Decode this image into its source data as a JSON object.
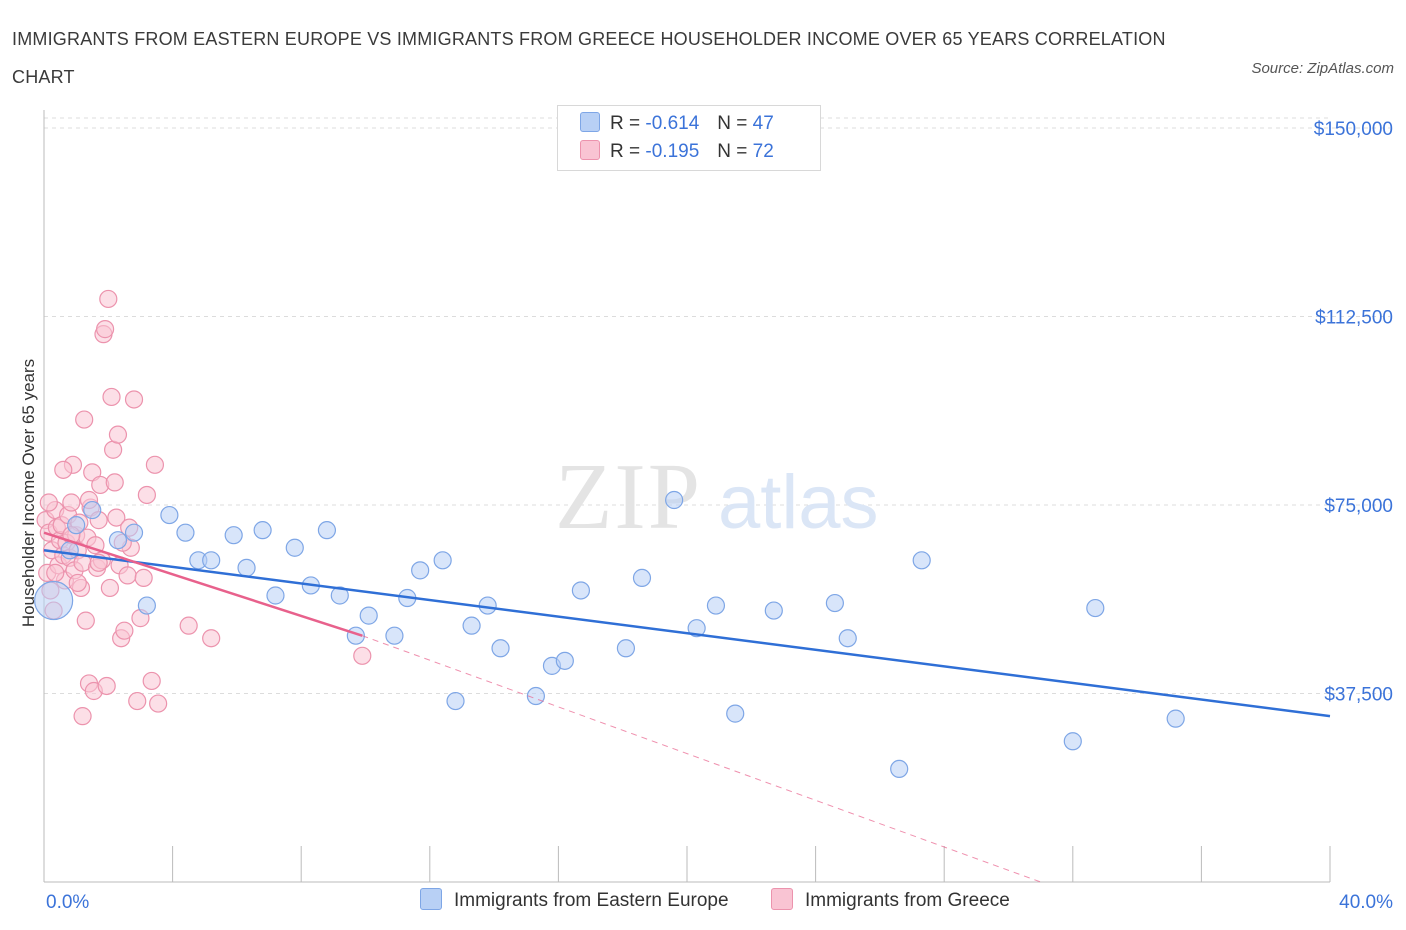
{
  "title": "IMMIGRANTS FROM EASTERN EUROPE VS IMMIGRANTS FROM GREECE HOUSEHOLDER INCOME OVER 65 YEARS CORRELATION CHART",
  "source": "Source: ZipAtlas.com",
  "watermark": {
    "zip": "ZIP",
    "atlas": "atlas"
  },
  "legend_top": [
    {
      "r_label": "R =",
      "r_value": "-0.614",
      "n_label": "N =",
      "n_value": "47",
      "color": "#b8d0f5"
    },
    {
      "r_label": "R =",
      "r_value": "-0.195",
      "n_label": "N =",
      "n_value": "72",
      "color": "#f9c4d3"
    }
  ],
  "colors": {
    "blue_fill": "#b8d0f5",
    "blue_stroke": "#7ea6e6",
    "blue_line": "#2f6fd6",
    "pink_fill": "#f9c4d3",
    "pink_stroke": "#ec93ad",
    "pink_line": "#e8618c",
    "tick_label": "#3b73d9",
    "grid": "#dcdcdc"
  },
  "chart_data": {
    "type": "scatter",
    "title": "IMMIGRANTS FROM EASTERN EUROPE VS IMMIGRANTS FROM GREECE HOUSEHOLDER INCOME OVER 65 YEARS CORRELATION CHART",
    "xlabel": "",
    "ylabel": "Householder Income Over 65 years",
    "xlim": [
      0,
      40
    ],
    "ylim": [
      0,
      152000
    ],
    "x_tick_labels": [
      "0.0%",
      "40.0%"
    ],
    "y_ticks": [
      37500,
      75000,
      112500,
      150000
    ],
    "y_tick_labels": [
      "$37,500",
      "$75,000",
      "$112,500",
      "$150,000"
    ],
    "grid": true,
    "legend_position": "top-center",
    "series": [
      {
        "name": "Immigrants from Eastern Europe",
        "points": [
          {
            "x": 0.3,
            "y": 56000,
            "big": true
          },
          {
            "x": 0.8,
            "y": 66000
          },
          {
            "x": 1.0,
            "y": 71000
          },
          {
            "x": 1.5,
            "y": 74000
          },
          {
            "x": 2.3,
            "y": 68000
          },
          {
            "x": 2.8,
            "y": 69500
          },
          {
            "x": 3.2,
            "y": 55000
          },
          {
            "x": 3.9,
            "y": 73000
          },
          {
            "x": 4.4,
            "y": 69500
          },
          {
            "x": 4.8,
            "y": 64000
          },
          {
            "x": 5.2,
            "y": 64000
          },
          {
            "x": 5.9,
            "y": 69000
          },
          {
            "x": 6.3,
            "y": 62500
          },
          {
            "x": 6.8,
            "y": 70000
          },
          {
            "x": 7.2,
            "y": 57000
          },
          {
            "x": 7.8,
            "y": 66500
          },
          {
            "x": 8.3,
            "y": 59000
          },
          {
            "x": 8.8,
            "y": 70000
          },
          {
            "x": 9.2,
            "y": 57000
          },
          {
            "x": 9.7,
            "y": 49000
          },
          {
            "x": 10.1,
            "y": 53000
          },
          {
            "x": 10.9,
            "y": 49000
          },
          {
            "x": 11.3,
            "y": 56500
          },
          {
            "x": 11.7,
            "y": 62000
          },
          {
            "x": 12.4,
            "y": 64000
          },
          {
            "x": 12.8,
            "y": 36000
          },
          {
            "x": 13.3,
            "y": 51000
          },
          {
            "x": 13.8,
            "y": 55000
          },
          {
            "x": 14.2,
            "y": 46500
          },
          {
            "x": 15.3,
            "y": 37000
          },
          {
            "x": 15.8,
            "y": 43000
          },
          {
            "x": 16.2,
            "y": 44000
          },
          {
            "x": 16.7,
            "y": 58000
          },
          {
            "x": 18.1,
            "y": 46500
          },
          {
            "x": 18.6,
            "y": 60500
          },
          {
            "x": 19.6,
            "y": 76000
          },
          {
            "x": 20.3,
            "y": 50500
          },
          {
            "x": 20.9,
            "y": 55000
          },
          {
            "x": 21.5,
            "y": 33500
          },
          {
            "x": 22.7,
            "y": 54000
          },
          {
            "x": 24.6,
            "y": 55500
          },
          {
            "x": 25.0,
            "y": 48500
          },
          {
            "x": 26.6,
            "y": 22500
          },
          {
            "x": 27.3,
            "y": 64000
          },
          {
            "x": 32.0,
            "y": 28000
          },
          {
            "x": 32.7,
            "y": 54500
          },
          {
            "x": 35.2,
            "y": 32500
          }
        ]
      },
      {
        "name": "Immigrants from Greece",
        "points": [
          {
            "x": 0.05,
            "y": 72000
          },
          {
            "x": 0.1,
            "y": 61500
          },
          {
            "x": 0.15,
            "y": 69500
          },
          {
            "x": 0.2,
            "y": 58000
          },
          {
            "x": 0.25,
            "y": 66000
          },
          {
            "x": 0.3,
            "y": 54000
          },
          {
            "x": 0.35,
            "y": 74000
          },
          {
            "x": 0.4,
            "y": 70500
          },
          {
            "x": 0.45,
            "y": 63000
          },
          {
            "x": 0.5,
            "y": 68000
          },
          {
            "x": 0.55,
            "y": 71000
          },
          {
            "x": 0.6,
            "y": 65000
          },
          {
            "x": 0.65,
            "y": 60000
          },
          {
            "x": 0.7,
            "y": 67500
          },
          {
            "x": 0.75,
            "y": 73000
          },
          {
            "x": 0.8,
            "y": 64500
          },
          {
            "x": 0.85,
            "y": 75500
          },
          {
            "x": 0.9,
            "y": 83000
          },
          {
            "x": 0.95,
            "y": 62000
          },
          {
            "x": 1.0,
            "y": 69000
          },
          {
            "x": 1.05,
            "y": 66000
          },
          {
            "x": 1.1,
            "y": 71500
          },
          {
            "x": 1.15,
            "y": 58500
          },
          {
            "x": 1.2,
            "y": 63500
          },
          {
            "x": 1.25,
            "y": 92000
          },
          {
            "x": 1.3,
            "y": 52000
          },
          {
            "x": 1.35,
            "y": 68500
          },
          {
            "x": 1.4,
            "y": 39500
          },
          {
            "x": 1.45,
            "y": 74500
          },
          {
            "x": 1.5,
            "y": 81500
          },
          {
            "x": 1.55,
            "y": 38000
          },
          {
            "x": 1.6,
            "y": 67000
          },
          {
            "x": 1.65,
            "y": 62500
          },
          {
            "x": 1.7,
            "y": 72000
          },
          {
            "x": 1.75,
            "y": 79000
          },
          {
            "x": 1.8,
            "y": 64000
          },
          {
            "x": 1.85,
            "y": 109000
          },
          {
            "x": 1.9,
            "y": 110000
          },
          {
            "x": 1.95,
            "y": 39000
          },
          {
            "x": 2.0,
            "y": 116000
          },
          {
            "x": 2.05,
            "y": 58500
          },
          {
            "x": 2.1,
            "y": 96500
          },
          {
            "x": 2.15,
            "y": 86000
          },
          {
            "x": 2.2,
            "y": 79500
          },
          {
            "x": 2.25,
            "y": 72500
          },
          {
            "x": 2.3,
            "y": 89000
          },
          {
            "x": 2.35,
            "y": 63000
          },
          {
            "x": 2.4,
            "y": 48500
          },
          {
            "x": 2.5,
            "y": 50000
          },
          {
            "x": 2.6,
            "y": 61000
          },
          {
            "x": 2.7,
            "y": 66500
          },
          {
            "x": 2.8,
            "y": 96000
          },
          {
            "x": 2.9,
            "y": 36000
          },
          {
            "x": 3.0,
            "y": 52500
          },
          {
            "x": 3.1,
            "y": 60500
          },
          {
            "x": 3.2,
            "y": 77000
          },
          {
            "x": 3.35,
            "y": 40000
          },
          {
            "x": 3.45,
            "y": 83000
          },
          {
            "x": 3.55,
            "y": 35500
          },
          {
            "x": 4.5,
            "y": 51000
          },
          {
            "x": 5.2,
            "y": 48500
          },
          {
            "x": 1.2,
            "y": 33000
          },
          {
            "x": 0.15,
            "y": 75500
          },
          {
            "x": 0.6,
            "y": 82000
          },
          {
            "x": 1.7,
            "y": 63500
          },
          {
            "x": 2.45,
            "y": 67500
          },
          {
            "x": 0.85,
            "y": 69000
          },
          {
            "x": 1.05,
            "y": 59500
          },
          {
            "x": 0.35,
            "y": 61500
          },
          {
            "x": 2.65,
            "y": 70500
          },
          {
            "x": 9.9,
            "y": 45000
          },
          {
            "x": 1.4,
            "y": 76000
          }
        ]
      }
    ],
    "trend_lines": [
      {
        "series": "Immigrants from Eastern Europe",
        "x": [
          0,
          40
        ],
        "y": [
          66000,
          33000
        ]
      },
      {
        "series": "Immigrants from Greece",
        "x": [
          0,
          9.9
        ],
        "y": [
          69500,
          49000
        ],
        "dashed_extension_to": [
          31,
          0
        ]
      }
    ]
  }
}
